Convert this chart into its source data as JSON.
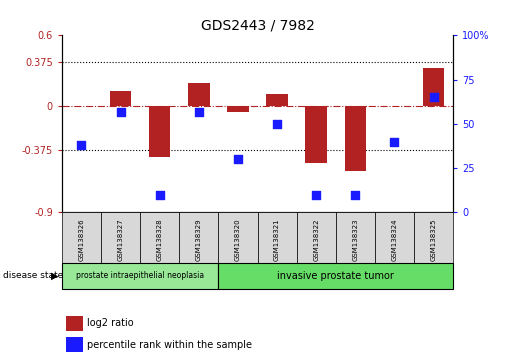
{
  "title": "GDS2443 / 7982",
  "samples": [
    "GSM138326",
    "GSM138327",
    "GSM138328",
    "GSM138329",
    "GSM138320",
    "GSM138321",
    "GSM138322",
    "GSM138323",
    "GSM138324",
    "GSM138325"
  ],
  "log2_ratio": [
    0.0,
    0.13,
    -0.43,
    0.2,
    -0.05,
    0.1,
    -0.48,
    -0.55,
    0.0,
    0.32
  ],
  "percentile_rank": [
    38,
    57,
    10,
    57,
    30,
    50,
    10,
    10,
    40,
    65
  ],
  "ylim_left": [
    -0.9,
    0.6
  ],
  "ylim_right": [
    0,
    100
  ],
  "yticks_left": [
    -0.9,
    -0.375,
    0.0,
    0.375,
    0.6
  ],
  "yticks_right": [
    0,
    25,
    50,
    75,
    100
  ],
  "hlines": [
    0.375,
    -0.375
  ],
  "bar_color": "#b22222",
  "dot_color": "#1a1aff",
  "group1_label": "prostate intraepithelial neoplasia",
  "group2_label": "invasive prostate tumor",
  "group1_indices": [
    0,
    1,
    2,
    3
  ],
  "group2_indices": [
    4,
    5,
    6,
    7,
    8,
    9
  ],
  "group1_color": "#98e898",
  "group2_color": "#66dd66",
  "xlabel_label": "disease state",
  "legend_red": "log2 ratio",
  "legend_blue": "percentile rank within the sample",
  "bar_width": 0.55,
  "dot_size": 28
}
